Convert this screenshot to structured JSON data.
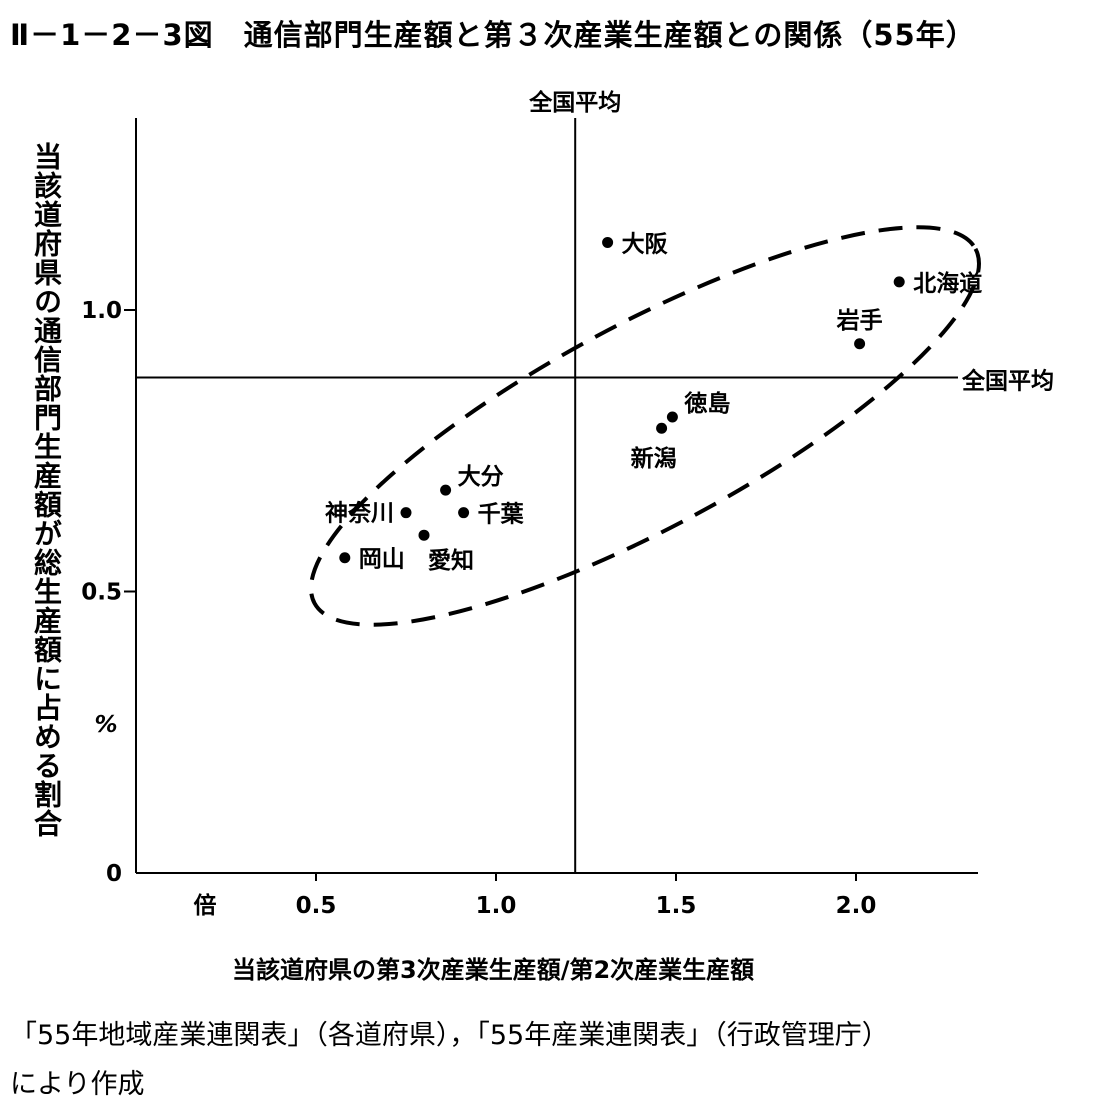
{
  "figure_title": "Ⅱ－1－2－3図　通信部門生産額と第３次産業生産額との関係（55年）",
  "source_line1": "「55年地域産業連関表」（各道府県），「55年産業連関表」（行政管理庁）",
  "source_line2": "により作成",
  "chart_data": {
    "type": "scatter",
    "title": "通信部門生産額と第３次産業生産額との関係（55年）",
    "xlabel": "当該道府県の第3次産業生産額/第2次産業生産額",
    "ylabel": "当該道府県の通信部門生産額が総生産額に占める割合",
    "x_unit": "倍",
    "y_unit": "%",
    "xlim": [
      0.0,
      2.3
    ],
    "ylim": [
      0.0,
      1.35
    ],
    "x_ticks": [
      {
        "value": 0.5,
        "label": "0.5"
      },
      {
        "value": 1.0,
        "label": "1.0"
      },
      {
        "value": 1.5,
        "label": "1.5"
      },
      {
        "value": 2.0,
        "label": "2.0"
      }
    ],
    "y_ticks": [
      {
        "value": 0,
        "label": "0"
      },
      {
        "value": 0.5,
        "label": "0.5"
      },
      {
        "value": 1.0,
        "label": "1.0"
      }
    ],
    "reference_lines": {
      "x_national_average": {
        "value": 1.22,
        "label": "全国平均"
      },
      "y_national_average": {
        "value": 0.88,
        "label": "全国平均"
      }
    },
    "points": [
      {
        "name": "大阪",
        "x": 1.31,
        "y": 1.12,
        "label_pos": "right"
      },
      {
        "name": "北海道",
        "x": 2.12,
        "y": 1.05,
        "label_pos": "right"
      },
      {
        "name": "岩手",
        "x": 2.01,
        "y": 0.94,
        "label_pos": "above"
      },
      {
        "name": "徳島",
        "x": 1.49,
        "y": 0.81,
        "label_pos": "upper-right"
      },
      {
        "name": "新潟",
        "x": 1.46,
        "y": 0.79,
        "label_pos": "below-left"
      },
      {
        "name": "大分",
        "x": 0.86,
        "y": 0.68,
        "label_pos": "upper-right"
      },
      {
        "name": "神奈川",
        "x": 0.75,
        "y": 0.64,
        "label_pos": "left"
      },
      {
        "name": "千葉",
        "x": 0.91,
        "y": 0.64,
        "label_pos": "right"
      },
      {
        "name": "愛知",
        "x": 0.8,
        "y": 0.6,
        "label_pos": "below-right"
      },
      {
        "name": "岡山",
        "x": 0.58,
        "y": 0.56,
        "label_pos": "right"
      }
    ],
    "annotations": [
      "dashed ellipse enclosing all prefectures except 大阪"
    ]
  }
}
